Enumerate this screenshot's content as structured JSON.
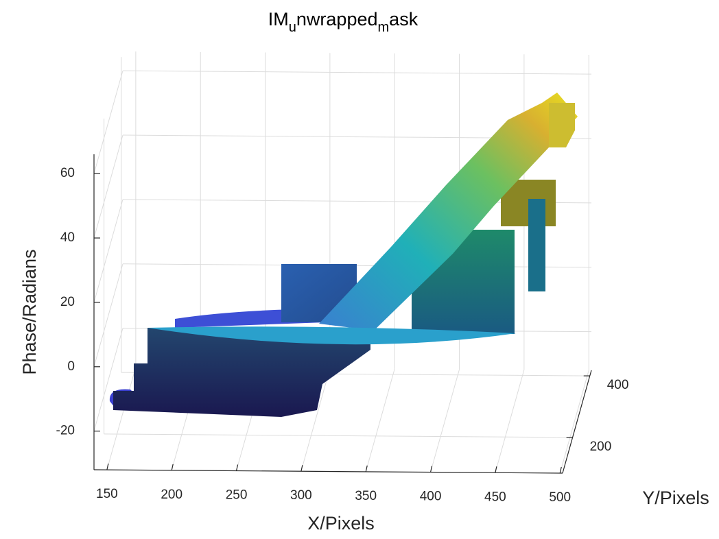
{
  "chart_data": {
    "type": "surface3d",
    "title": [
      {
        "text": "IM"
      },
      {
        "text": "u",
        "sub": true
      },
      {
        "text": "nwrapped"
      },
      {
        "text": "m",
        "sub": true
      },
      {
        "text": "ask"
      }
    ],
    "x_label": "X/Pixels",
    "y_label": "Y/Pixels",
    "z_label": "Phase/Radians",
    "xlim": [
      140,
      502
    ],
    "xticks": [
      150,
      200,
      250,
      300,
      350,
      400,
      450,
      500
    ],
    "ylim": [
      84,
      418
    ],
    "yticks": [
      200,
      400
    ],
    "zlim": [
      -32,
      66
    ],
    "zticks": [
      -20,
      0,
      20,
      40,
      60
    ],
    "grid": true
  }
}
